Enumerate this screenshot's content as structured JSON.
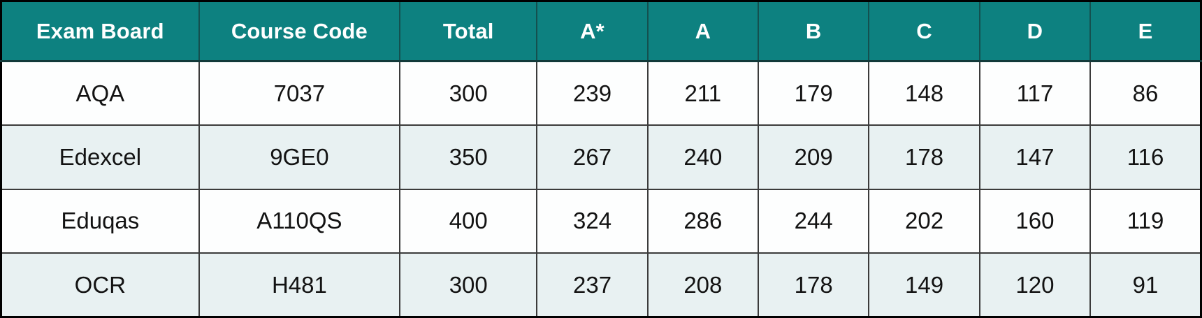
{
  "chart_data": {
    "type": "table",
    "columns": [
      "Exam Board",
      "Course Code",
      "Total",
      "A*",
      "A",
      "B",
      "C",
      "D",
      "E"
    ],
    "rows": [
      [
        "AQA",
        "7037",
        "300",
        "239",
        "211",
        "179",
        "148",
        "117",
        "86"
      ],
      [
        "Edexcel",
        "9GE0",
        "350",
        "267",
        "240",
        "209",
        "178",
        "147",
        "116"
      ],
      [
        "Eduqas",
        "A110QS",
        "400",
        "324",
        "286",
        "244",
        "202",
        "160",
        "119"
      ],
      [
        "OCR",
        "H481",
        "300",
        "237",
        "208",
        "178",
        "149",
        "120",
        "91"
      ]
    ]
  },
  "colors": {
    "header_bg": "#0d8180",
    "header_text": "#ffffff",
    "row_bg": "#fdfefe",
    "row_alt_bg": "#e8f1f2",
    "grid_line": "#3b3b3b",
    "outer_border": "#000000",
    "cell_text": "#131313"
  }
}
